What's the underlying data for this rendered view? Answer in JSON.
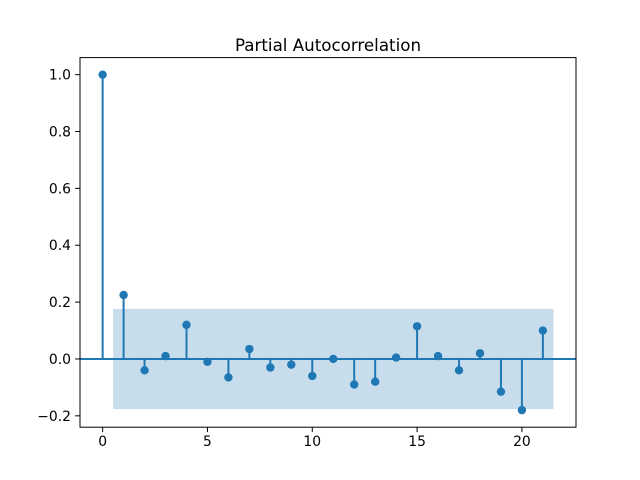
{
  "figure": {
    "background": "#ffffff"
  },
  "chart_data": {
    "type": "stem",
    "title": "Partial Autocorrelation",
    "xlabel": "",
    "ylabel": "",
    "lags": [
      0,
      1,
      2,
      3,
      4,
      5,
      6,
      7,
      8,
      9,
      10,
      11,
      12,
      13,
      14,
      15,
      16,
      17,
      18,
      19,
      20,
      21
    ],
    "values": [
      1.0,
      0.225,
      -0.04,
      0.01,
      0.12,
      -0.01,
      -0.065,
      0.035,
      -0.03,
      -0.02,
      -0.06,
      0.0,
      -0.09,
      -0.08,
      0.005,
      0.115,
      0.01,
      -0.04,
      0.02,
      -0.115,
      -0.18,
      0.1
    ],
    "confidence_band": {
      "lower": -0.176,
      "upper": 0.176,
      "x_start": 0.5,
      "x_end": 21.5
    },
    "zero_line_y": 0.0,
    "xlim": [
      -1.08,
      22.58
    ],
    "ylim": [
      -0.24,
      1.06
    ],
    "xticks": {
      "values": [
        0,
        5,
        10,
        15,
        20
      ],
      "labels": [
        "0",
        "5",
        "10",
        "15",
        "20"
      ]
    },
    "yticks": {
      "values": [
        -0.2,
        0.0,
        0.2,
        0.4,
        0.6,
        0.8,
        1.0
      ],
      "labels": [
        "−0.2",
        "0.0",
        "0.2",
        "0.4",
        "0.6",
        "0.8",
        "1.0"
      ]
    },
    "colors": {
      "stem": "#1f77b4",
      "marker": "#1f77b4",
      "zero_line": "#1f77b4",
      "band": "#1f77b4",
      "band_alpha": 0.25,
      "spine": "#000000"
    },
    "marker_radius": 4.2,
    "stem_width": 2,
    "grid": false,
    "legend": null
  }
}
